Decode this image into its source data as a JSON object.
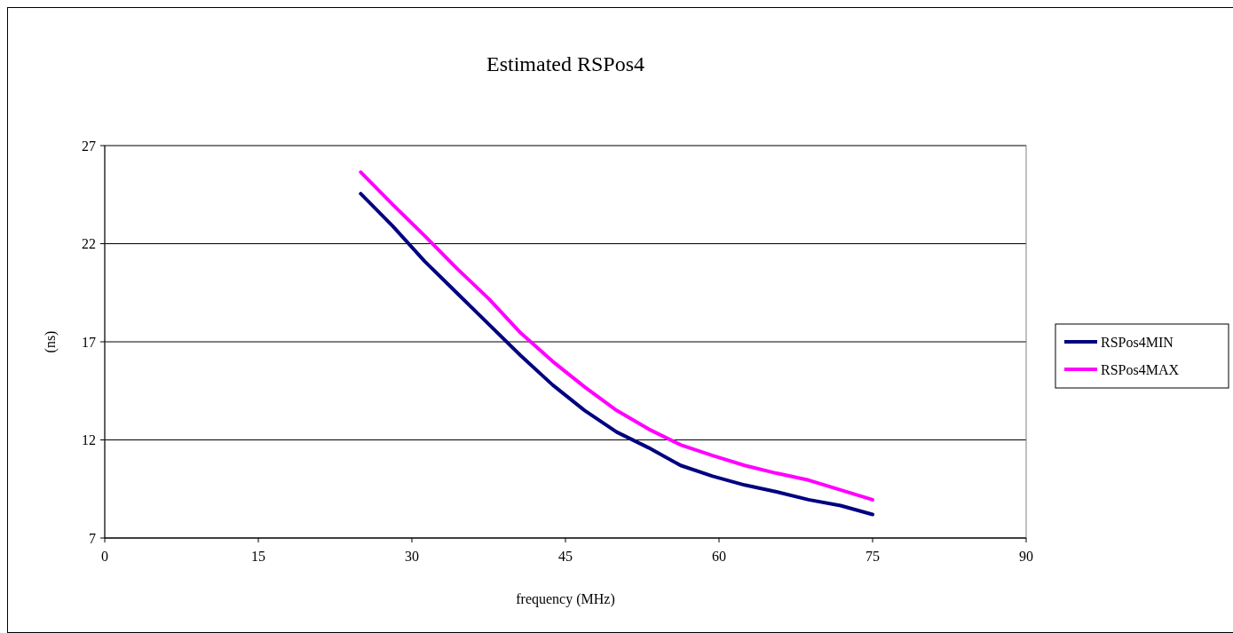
{
  "chart_data": {
    "type": "line",
    "title": "Estimated RSPos4",
    "xlabel": "frequency (MHz)",
    "ylabel": "(ns)",
    "x": [
      25,
      28.125,
      31.25,
      34.375,
      37.5,
      40.625,
      43.75,
      46.875,
      50,
      53.125,
      56.25,
      59.375,
      62.5,
      65.625,
      68.75,
      71.875,
      75
    ],
    "series": [
      {
        "name": "RSPos4MIN",
        "color": "#000080",
        "values": [
          24.55,
          22.9,
          21.1,
          19.5,
          17.9,
          16.3,
          14.8,
          13.5,
          12.4,
          11.6,
          10.7,
          10.15,
          9.7,
          9.35,
          8.95,
          8.65,
          8.2
        ]
      },
      {
        "name": "RSPos4MAX",
        "color": "#ff00ff",
        "values": [
          25.65,
          24.0,
          22.4,
          20.75,
          19.2,
          17.45,
          16.0,
          14.7,
          13.5,
          12.55,
          11.75,
          11.2,
          10.7,
          10.3,
          9.95,
          9.45,
          8.95
        ]
      }
    ],
    "xlim": [
      0,
      90
    ],
    "xticks": [
      0,
      15,
      30,
      45,
      60,
      75,
      90
    ],
    "ylim": [
      7,
      27
    ],
    "yticks": [
      7,
      12,
      17,
      22,
      27
    ],
    "grid": "y",
    "legend": "right",
    "marker": "none",
    "line_style": "solid"
  }
}
